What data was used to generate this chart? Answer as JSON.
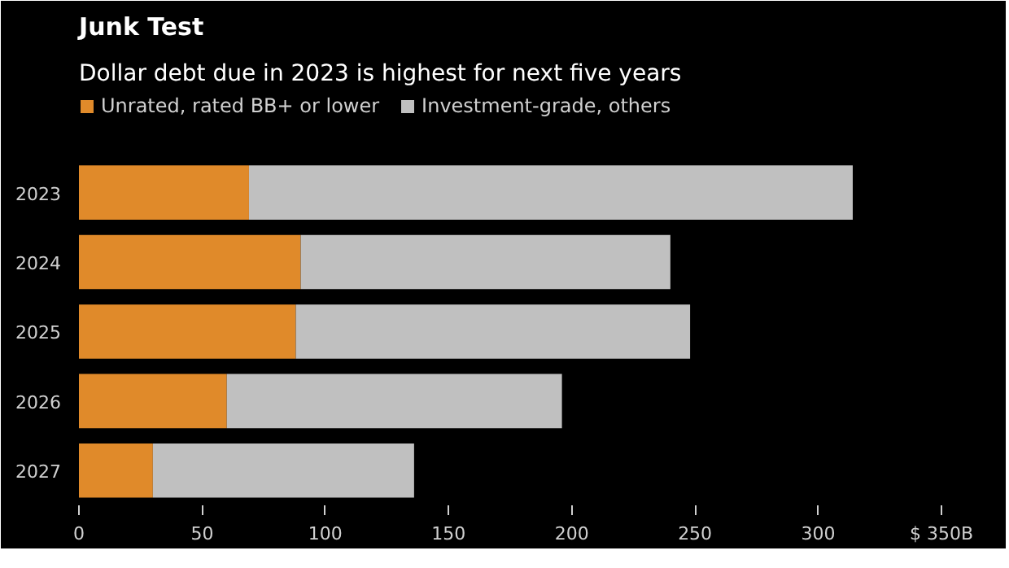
{
  "chart_data": {
    "type": "bar",
    "orientation": "horizontal",
    "stacked": true,
    "title": "Junk Test",
    "subtitle": "Dollar debt due in 2023 is highest for next five years",
    "categories": [
      "2023",
      "2024",
      "2025",
      "2026",
      "2027"
    ],
    "series": [
      {
        "name": "Unrated, rated BB+ or lower",
        "color": "#e08a2a",
        "values": [
          69,
          90,
          88,
          60,
          30
        ]
      },
      {
        "name": "Investment-grade, others",
        "color": "#c0c0c0",
        "values": [
          245,
          150,
          160,
          136,
          106
        ]
      }
    ],
    "xlim": [
      0,
      350
    ],
    "xticks": [
      0,
      50,
      100,
      150,
      200,
      250,
      300,
      {
        "value": 350,
        "label": "$ 350B"
      }
    ],
    "grid": false,
    "legend": "top"
  }
}
